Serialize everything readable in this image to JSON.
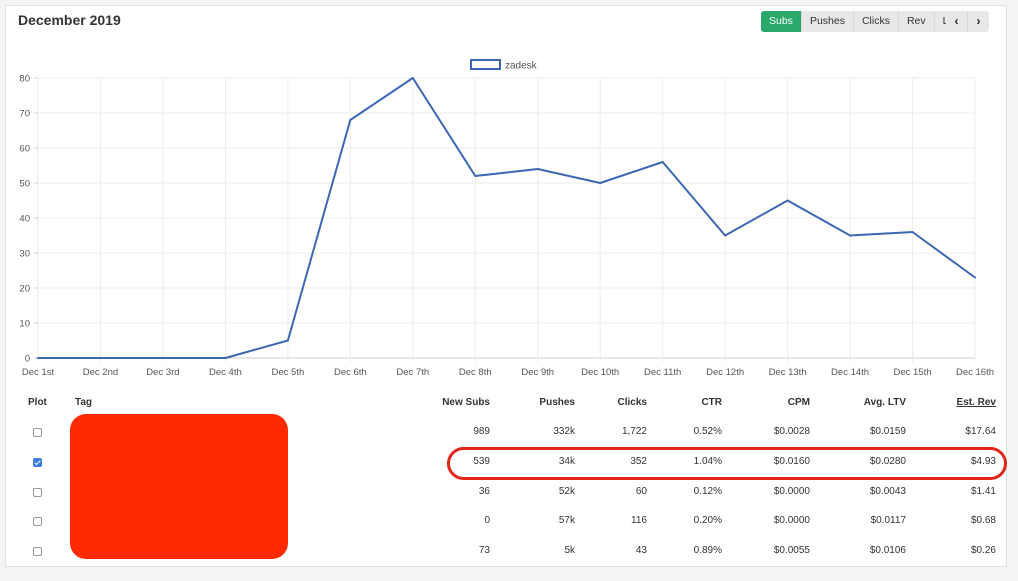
{
  "header": {
    "title": "December 2019"
  },
  "metric_buttons": [
    {
      "label": "Subs",
      "active": true
    },
    {
      "label": "Pushes",
      "active": false
    },
    {
      "label": "Clicks",
      "active": false
    },
    {
      "label": "Rev",
      "active": false
    },
    {
      "label": "LTV",
      "active": false
    }
  ],
  "nav": {
    "prev_icon": "chevron-left-icon",
    "prev_glyph": "‹",
    "next_icon": "chevron-right-icon",
    "next_glyph": "›"
  },
  "colors": {
    "accent": "#28a86b",
    "line": "#3b67b3",
    "highlight": "#e0261b",
    "redaction": "#ff2a00",
    "checkbox": "#3b7ddd"
  },
  "chart_data": {
    "type": "line",
    "categories": [
      "Dec 1st",
      "Dec 2nd",
      "Dec 3rd",
      "Dec 4th",
      "Dec 5th",
      "Dec 6th",
      "Dec 7th",
      "Dec 8th",
      "Dec 9th",
      "Dec 10th",
      "Dec 11th",
      "Dec 12th",
      "Dec 13th",
      "Dec 14th",
      "Dec 15th",
      "Dec 16th"
    ],
    "series": [
      {
        "name": "zadesk",
        "values": [
          0,
          0,
          0,
          0,
          5,
          68,
          80,
          52,
          54,
          50,
          56,
          35,
          45,
          35,
          36,
          23
        ]
      }
    ],
    "yticks": [
      0,
      10,
      20,
      30,
      40,
      50,
      60,
      70,
      80
    ],
    "ylim": [
      0,
      80
    ],
    "grid": true,
    "legend": "top-center"
  },
  "table": {
    "headers": {
      "plot": "Plot",
      "tag": "Tag",
      "new_subs": "New Subs",
      "pushes": "Pushes",
      "clicks": "Clicks",
      "ctr": "CTR",
      "cpm": "CPM",
      "avg_ltv": "Avg. LTV",
      "est_rev": "Est. Rev"
    },
    "rows": [
      {
        "checked": false,
        "new_subs": "989",
        "pushes": "332k",
        "clicks": "1,722",
        "ctr": "0.52%",
        "cpm": "$0.0028",
        "avg_ltv": "$0.0159",
        "est_rev": "$17.64"
      },
      {
        "checked": true,
        "new_subs": "539",
        "pushes": "34k",
        "clicks": "352",
        "ctr": "1.04%",
        "cpm": "$0.0160",
        "avg_ltv": "$0.0280",
        "est_rev": "$4.93"
      },
      {
        "checked": false,
        "new_subs": "36",
        "pushes": "52k",
        "clicks": "60",
        "ctr": "0.12%",
        "cpm": "$0.0000",
        "avg_ltv": "$0.0043",
        "est_rev": "$1.41"
      },
      {
        "checked": false,
        "new_subs": "0",
        "pushes": "57k",
        "clicks": "116",
        "ctr": "0.20%",
        "cpm": "$0.0000",
        "avg_ltv": "$0.0117",
        "est_rev": "$0.68"
      },
      {
        "checked": false,
        "new_subs": "73",
        "pushes": "5k",
        "clicks": "43",
        "ctr": "0.89%",
        "cpm": "$0.0055",
        "avg_ltv": "$0.0106",
        "est_rev": "$0.26"
      }
    ]
  }
}
